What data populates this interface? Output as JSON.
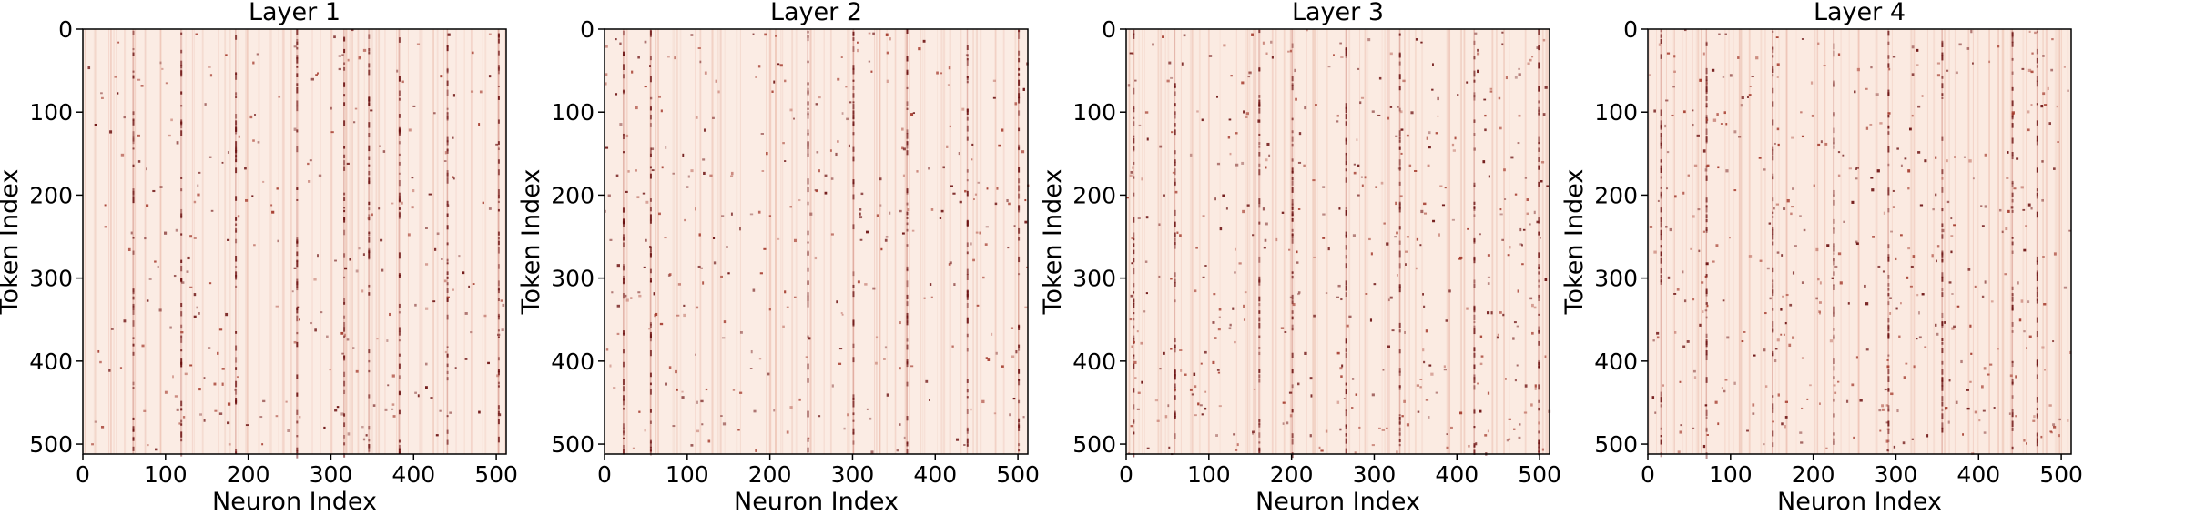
{
  "chart_data": [
    {
      "type": "heatmap",
      "title": "Layer 1",
      "xlabel": "Neuron Index",
      "ylabel": "Token Index",
      "xlim": [
        0,
        512
      ],
      "ylim": [
        512,
        0
      ],
      "xticks": [
        "0",
        "100",
        "200",
        "300",
        "400",
        "500"
      ],
      "yticks": [
        "0",
        "100",
        "200",
        "300",
        "400",
        "500"
      ],
      "colormap": "white-to-dark-red (Reds)",
      "background_color": "#fbece4",
      "mark_color": "#6b1010",
      "prominent_columns": [
        60,
        118,
        184,
        258,
        315,
        345,
        382,
        440,
        502
      ],
      "sparse_activation_density": 0.0025,
      "grid": false,
      "legend": "none"
    },
    {
      "type": "heatmap",
      "title": "Layer 2",
      "xlabel": "Neuron Index",
      "ylabel": "Token Index",
      "xlim": [
        0,
        512
      ],
      "ylim": [
        512,
        0
      ],
      "xticks": [
        "0",
        "100",
        "200",
        "300",
        "400",
        "500"
      ],
      "yticks": [
        "0",
        "100",
        "200",
        "300",
        "400",
        "500"
      ],
      "colormap": "white-to-dark-red (Reds)",
      "background_color": "#fbece4",
      "mark_color": "#6b1010",
      "prominent_columns": [
        22,
        55,
        245,
        300,
        365,
        438,
        500
      ],
      "sparse_activation_density": 0.003,
      "grid": false,
      "legend": "none"
    },
    {
      "type": "heatmap",
      "title": "Layer 3",
      "xlabel": "Neuron Index",
      "ylabel": "Token Index",
      "xlim": [
        0,
        512
      ],
      "ylim": [
        512,
        0
      ],
      "xticks": [
        "0",
        "100",
        "200",
        "300",
        "400",
        "500"
      ],
      "yticks": [
        "0",
        "100",
        "200",
        "300",
        "400",
        "500"
      ],
      "colormap": "white-to-dark-red (Reds)",
      "background_color": "#fbebe2",
      "mark_color": "#6b1010",
      "prominent_columns": [
        8,
        58,
        160,
        200,
        265,
        330,
        420,
        498
      ],
      "sparse_activation_density": 0.004,
      "grid": false,
      "legend": "none"
    },
    {
      "type": "heatmap",
      "title": "Layer 4",
      "xlabel": "Neuron Index",
      "ylabel": "Token Index",
      "xlim": [
        0,
        512
      ],
      "ylim": [
        512,
        0
      ],
      "xticks": [
        "0",
        "100",
        "200",
        "300",
        "400",
        "500"
      ],
      "yticks": [
        "0",
        "100",
        "200",
        "300",
        "400",
        "500"
      ],
      "colormap": "white-to-dark-red (Reds)",
      "background_color": "#fbeae1",
      "mark_color": "#6b1010",
      "prominent_columns": [
        15,
        70,
        150,
        224,
        290,
        355,
        440,
        470
      ],
      "sparse_activation_density": 0.004,
      "grid": false,
      "legend": "none"
    }
  ]
}
